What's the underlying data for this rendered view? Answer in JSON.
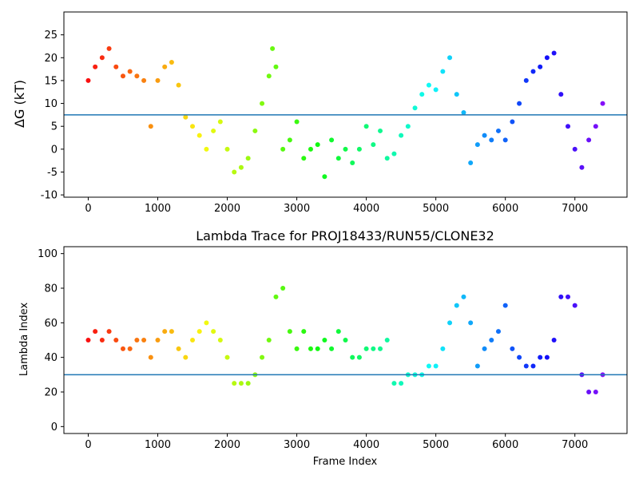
{
  "chart_data": [
    {
      "type": "scatter",
      "title": "",
      "xlabel": "",
      "ylabel": "ΔG (kT)",
      "xlim": [
        -350,
        7750
      ],
      "ylim": [
        -10.5,
        30
      ],
      "xticks": [
        0,
        1000,
        2000,
        3000,
        4000,
        5000,
        6000,
        7000
      ],
      "yticks": [
        -10,
        -5,
        0,
        5,
        10,
        15,
        20,
        25
      ],
      "hline": 7.5,
      "hline_color": "#1f77b4",
      "colormap": "rainbow (red at frame 0 to violet at final frame)",
      "series": [
        {
          "name": "",
          "x": [
            0,
            100,
            200,
            300,
            400,
            500,
            600,
            700,
            800,
            900,
            1000,
            1100,
            1200,
            1300,
            1400,
            1500,
            1600,
            1700,
            1800,
            1900,
            2000,
            2100,
            2200,
            2300,
            2400,
            2500,
            2600,
            2650,
            2700,
            2800,
            2900,
            3000,
            3100,
            3200,
            3300,
            3400,
            3500,
            3600,
            3700,
            3800,
            3900,
            4000,
            4100,
            4200,
            4300,
            4400,
            4500,
            4600,
            4700,
            4800,
            4900,
            5000,
            5100,
            5200,
            5300,
            5400,
            5500,
            5600,
            5700,
            5800,
            5900,
            6000,
            6100,
            6200,
            6300,
            6400,
            6500,
            6600,
            6700,
            6800,
            6900,
            7000,
            7100,
            7200,
            7300,
            7400
          ],
          "y": [
            15,
            18,
            20,
            22,
            18,
            16,
            17,
            16,
            15,
            5,
            15,
            18,
            19,
            14,
            7,
            5,
            3,
            0,
            4,
            6,
            0,
            -5,
            -4,
            -2,
            4,
            10,
            16,
            22,
            18,
            0,
            2,
            6,
            -2,
            0,
            1,
            -6,
            2,
            -2,
            0,
            -3,
            0,
            5,
            1,
            4,
            -2,
            -1,
            3,
            5,
            9,
            12,
            14,
            13,
            17,
            20,
            12,
            8,
            -3,
            1,
            3,
            2,
            4,
            2,
            6,
            10,
            15,
            17,
            18,
            20,
            21,
            12,
            5,
            0,
            -4,
            2,
            5,
            10
          ]
        }
      ]
    },
    {
      "type": "scatter",
      "title": "Lambda Trace for PROJ18433/RUN55/CLONE32",
      "xlabel": "Frame Index",
      "ylabel": "Lambda Index",
      "xlim": [
        -350,
        7750
      ],
      "ylim": [
        -4,
        104
      ],
      "xticks": [
        0,
        1000,
        2000,
        3000,
        4000,
        5000,
        6000,
        7000
      ],
      "yticks": [
        0,
        20,
        40,
        60,
        80,
        100
      ],
      "hline": 30,
      "hline_color": "#1f77b4",
      "colormap": "rainbow (red at frame 0 to violet at final frame)",
      "series": [
        {
          "name": "",
          "x": [
            0,
            100,
            200,
            300,
            400,
            500,
            600,
            700,
            800,
            900,
            1000,
            1100,
            1200,
            1300,
            1400,
            1500,
            1600,
            1700,
            1800,
            1900,
            2000,
            2100,
            2200,
            2300,
            2400,
            2500,
            2600,
            2700,
            2800,
            2900,
            3000,
            3100,
            3200,
            3300,
            3400,
            3500,
            3600,
            3700,
            3800,
            3900,
            4000,
            4100,
            4200,
            4300,
            4400,
            4500,
            4600,
            4700,
            4800,
            4900,
            5000,
            5100,
            5200,
            5300,
            5400,
            5500,
            5600,
            5700,
            5800,
            5900,
            6000,
            6100,
            6200,
            6300,
            6400,
            6500,
            6600,
            6700,
            6800,
            6900,
            7000,
            7100,
            7200,
            7300,
            7400
          ],
          "y": [
            50,
            55,
            50,
            55,
            50,
            45,
            45,
            50,
            50,
            40,
            50,
            55,
            55,
            45,
            40,
            50,
            55,
            60,
            55,
            50,
            40,
            25,
            25,
            25,
            30,
            40,
            50,
            75,
            80,
            55,
            45,
            55,
            45,
            45,
            50,
            45,
            55,
            50,
            40,
            40,
            45,
            45,
            45,
            50,
            25,
            25,
            30,
            30,
            30,
            35,
            35,
            45,
            60,
            70,
            75,
            60,
            35,
            45,
            50,
            55,
            70,
            45,
            40,
            35,
            35,
            40,
            40,
            50,
            75,
            75,
            70,
            30,
            20,
            20,
            30
          ]
        }
      ]
    }
  ]
}
